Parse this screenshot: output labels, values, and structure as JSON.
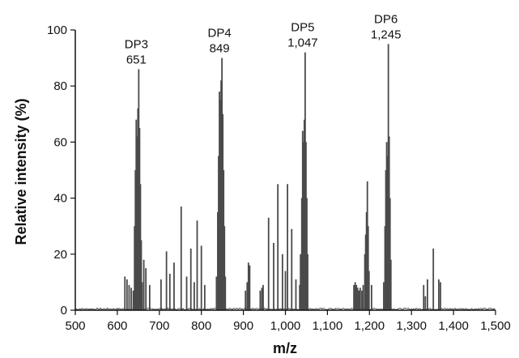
{
  "chart_data": {
    "type": "bar",
    "subtype": "mass-spectrum-sticks",
    "xlabel": "m/z",
    "ylabel": "Relative intensity (%)",
    "xlim": [
      500,
      1500
    ],
    "ylim": [
      0,
      100
    ],
    "x_ticks": [
      500,
      600,
      700,
      800,
      900,
      1000,
      1100,
      1200,
      1300,
      1400,
      1500
    ],
    "x_tick_labels": [
      "500",
      "600",
      "700",
      "800",
      "900",
      "1,000",
      "1,100",
      "1,200",
      "1,300",
      "1,400",
      "1,500"
    ],
    "y_ticks": [
      0,
      20,
      40,
      60,
      80,
      100
    ],
    "y_tick_labels": [
      "0",
      "20",
      "40",
      "60",
      "80",
      "100"
    ],
    "grid": false,
    "bar_color": "#4a4a4a",
    "annotations": [
      {
        "name": "DP3",
        "mz_label": "651",
        "x": 651,
        "y": 86
      },
      {
        "name": "DP4",
        "mz_label": "849",
        "x": 849,
        "y": 90
      },
      {
        "name": "DP5",
        "mz_label": "1,047",
        "x": 1047,
        "y": 92
      },
      {
        "name": "DP6",
        "mz_label": "1,245",
        "x": 1245,
        "y": 95
      }
    ],
    "peaks": [
      {
        "x": 618,
        "y": 12
      },
      {
        "x": 623,
        "y": 11
      },
      {
        "x": 628,
        "y": 9
      },
      {
        "x": 633,
        "y": 8
      },
      {
        "x": 638,
        "y": 7
      },
      {
        "x": 641,
        "y": 30
      },
      {
        "x": 643,
        "y": 50
      },
      {
        "x": 645,
        "y": 68
      },
      {
        "x": 647,
        "y": 62
      },
      {
        "x": 649,
        "y": 72
      },
      {
        "x": 651,
        "y": 86
      },
      {
        "x": 653,
        "y": 65
      },
      {
        "x": 655,
        "y": 45
      },
      {
        "x": 657,
        "y": 25
      },
      {
        "x": 659,
        "y": 10
      },
      {
        "x": 663,
        "y": 18
      },
      {
        "x": 668,
        "y": 15
      },
      {
        "x": 677,
        "y": 9
      },
      {
        "x": 704,
        "y": 11
      },
      {
        "x": 717,
        "y": 21
      },
      {
        "x": 725,
        "y": 13
      },
      {
        "x": 735,
        "y": 17
      },
      {
        "x": 752,
        "y": 37
      },
      {
        "x": 765,
        "y": 12
      },
      {
        "x": 775,
        "y": 22
      },
      {
        "x": 783,
        "y": 10
      },
      {
        "x": 790,
        "y": 32
      },
      {
        "x": 800,
        "y": 23
      },
      {
        "x": 808,
        "y": 9
      },
      {
        "x": 836,
        "y": 12
      },
      {
        "x": 839,
        "y": 35
      },
      {
        "x": 841,
        "y": 55
      },
      {
        "x": 843,
        "y": 78
      },
      {
        "x": 845,
        "y": 75
      },
      {
        "x": 847,
        "y": 82
      },
      {
        "x": 849,
        "y": 90
      },
      {
        "x": 851,
        "y": 70
      },
      {
        "x": 853,
        "y": 50
      },
      {
        "x": 855,
        "y": 30
      },
      {
        "x": 857,
        "y": 12
      },
      {
        "x": 905,
        "y": 7
      },
      {
        "x": 909,
        "y": 10
      },
      {
        "x": 912,
        "y": 17
      },
      {
        "x": 915,
        "y": 16
      },
      {
        "x": 940,
        "y": 7
      },
      {
        "x": 944,
        "y": 8
      },
      {
        "x": 947,
        "y": 9
      },
      {
        "x": 960,
        "y": 33
      },
      {
        "x": 972,
        "y": 24
      },
      {
        "x": 982,
        "y": 45
      },
      {
        "x": 993,
        "y": 20
      },
      {
        "x": 1000,
        "y": 14
      },
      {
        "x": 1005,
        "y": 45
      },
      {
        "x": 1015,
        "y": 29
      },
      {
        "x": 1025,
        "y": 11
      },
      {
        "x": 1034,
        "y": 9
      },
      {
        "x": 1036,
        "y": 20
      },
      {
        "x": 1039,
        "y": 40
      },
      {
        "x": 1041,
        "y": 64
      },
      {
        "x": 1043,
        "y": 60
      },
      {
        "x": 1045,
        "y": 68
      },
      {
        "x": 1047,
        "y": 92
      },
      {
        "x": 1049,
        "y": 60
      },
      {
        "x": 1051,
        "y": 40
      },
      {
        "x": 1053,
        "y": 20
      },
      {
        "x": 1163,
        "y": 9
      },
      {
        "x": 1166,
        "y": 10
      },
      {
        "x": 1169,
        "y": 9
      },
      {
        "x": 1172,
        "y": 8
      },
      {
        "x": 1175,
        "y": 7
      },
      {
        "x": 1178,
        "y": 8
      },
      {
        "x": 1182,
        "y": 7
      },
      {
        "x": 1185,
        "y": 9
      },
      {
        "x": 1189,
        "y": 20
      },
      {
        "x": 1191,
        "y": 27
      },
      {
        "x": 1193,
        "y": 35
      },
      {
        "x": 1195,
        "y": 46
      },
      {
        "x": 1197,
        "y": 30
      },
      {
        "x": 1199,
        "y": 14
      },
      {
        "x": 1205,
        "y": 9
      },
      {
        "x": 1234,
        "y": 10
      },
      {
        "x": 1237,
        "y": 30
      },
      {
        "x": 1239,
        "y": 50
      },
      {
        "x": 1241,
        "y": 60
      },
      {
        "x": 1243,
        "y": 55
      },
      {
        "x": 1245,
        "y": 95
      },
      {
        "x": 1247,
        "y": 62
      },
      {
        "x": 1249,
        "y": 40
      },
      {
        "x": 1251,
        "y": 18
      },
      {
        "x": 1329,
        "y": 9
      },
      {
        "x": 1333,
        "y": 5
      },
      {
        "x": 1338,
        "y": 11
      },
      {
        "x": 1352,
        "y": 22
      },
      {
        "x": 1365,
        "y": 11
      },
      {
        "x": 1369,
        "y": 10
      }
    ]
  }
}
